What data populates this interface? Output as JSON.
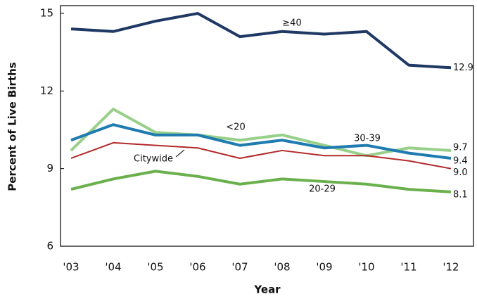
{
  "chart_data": {
    "type": "line",
    "x_label": "Year",
    "y_label": "Percent of Live Births",
    "categories": [
      "'03",
      "'04",
      "'05",
      "'06",
      "'07",
      "'08",
      "'09",
      "'10",
      "'11",
      "'12"
    ],
    "ylim": [
      6,
      15.3
    ],
    "yticks": [
      6,
      9,
      12,
      15
    ],
    "series": [
      {
        "name": "≥40",
        "color": "#1f3864",
        "values": [
          14.4,
          14.3,
          14.7,
          15.0,
          14.1,
          14.3,
          14.2,
          14.3,
          13.0,
          12.9
        ]
      },
      {
        "name": "<20",
        "color": "#98d08a",
        "values": [
          9.7,
          11.3,
          10.4,
          10.3,
          10.1,
          10.3,
          9.9,
          9.5,
          9.8,
          9.7
        ]
      },
      {
        "name": "30-39",
        "color": "#1f7bb0",
        "values": [
          10.1,
          10.7,
          10.3,
          10.3,
          9.9,
          10.1,
          9.8,
          9.9,
          9.6,
          9.4
        ]
      },
      {
        "name": "Citywide",
        "color": "#b22a2a",
        "values": [
          9.4,
          10.0,
          9.9,
          9.8,
          9.4,
          9.7,
          9.5,
          9.5,
          9.3,
          9.0
        ],
        "value_labels": [
          null,
          null,
          null,
          null,
          null,
          null,
          null,
          null,
          null,
          "9.0"
        ]
      },
      {
        "name": "20-29",
        "color": "#6ab04c",
        "values": [
          8.2,
          8.6,
          8.9,
          8.7,
          8.4,
          8.6,
          8.5,
          8.4,
          8.2,
          8.1
        ]
      }
    ]
  }
}
